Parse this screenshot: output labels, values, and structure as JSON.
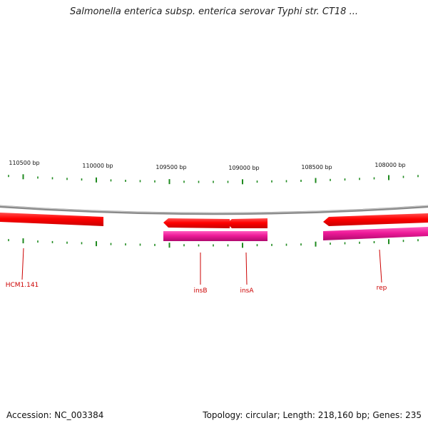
{
  "title": "Salmonella enterica subsp. enterica serovar Typhi str. CT18 ...",
  "scale_labels": [
    {
      "text": "110500 bp"
    },
    {
      "text": "110000 bp"
    },
    {
      "text": "109500 bp"
    },
    {
      "text": "109000 bp"
    },
    {
      "text": "108500 bp"
    },
    {
      "text": "108000 bp"
    }
  ],
  "genes": [
    {
      "label": "HCM1.141"
    },
    {
      "label": "insB"
    },
    {
      "label": "insA"
    },
    {
      "label": "rep"
    }
  ],
  "footer": {
    "accession": "Accession: NC_003384",
    "summary": "Topology: circular; Length: 218,160 bp; Genes: 235"
  },
  "colors": {
    "cds_red": "#ff0000",
    "gene_magenta": "#e8128c",
    "label_red": "#cc0000",
    "tick_green": "#1f8a1f",
    "backbone_grey": "#8a8a8a"
  }
}
